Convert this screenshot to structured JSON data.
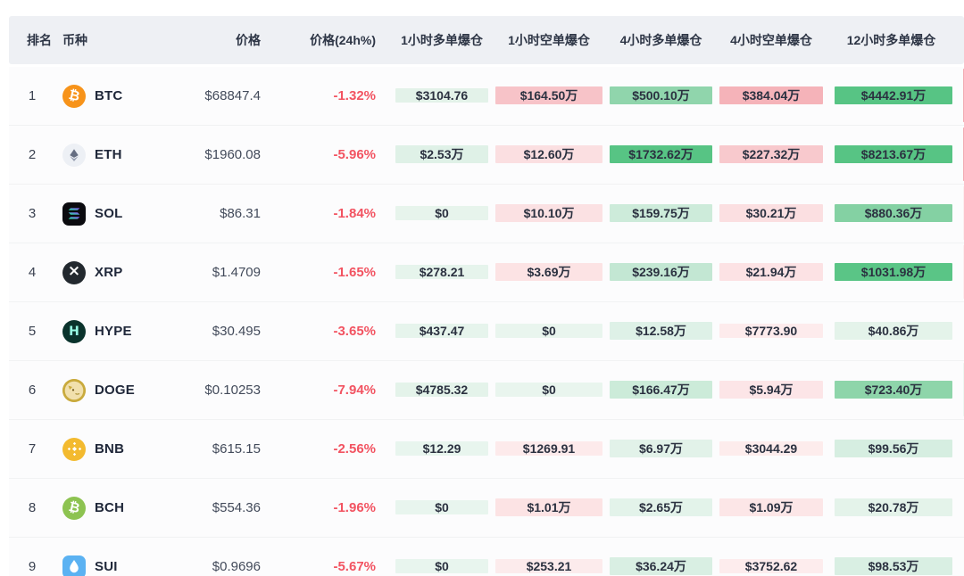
{
  "table": {
    "header": {
      "columns": [
        {
          "label": "排名"
        },
        {
          "label": "币种"
        },
        {
          "label": "价格"
        },
        {
          "label": "价格(24h%)"
        },
        {
          "label": "1小时多单爆仓"
        },
        {
          "label": "1小时空单爆仓"
        },
        {
          "label": "4小时多单爆仓"
        },
        {
          "label": "4小时空单爆仓"
        },
        {
          "label": "12小时多单爆仓"
        }
      ]
    },
    "rows": [
      {
        "rank": "1",
        "symbol": "BTC",
        "price": "$68847.4",
        "change": "-1.32%",
        "icon": {
          "glyph": "btc",
          "shape": "circle",
          "bg": "#f7931a"
        },
        "cells": [
          {
            "text": "$3104.76",
            "bg": "#e3f2e9"
          },
          {
            "text": "$164.50万",
            "bg": "#f7c3c8"
          },
          {
            "text": "$500.10万",
            "bg": "#90d5ac"
          },
          {
            "text": "$384.04万",
            "bg": "#f5b3b9"
          },
          {
            "text": "$4442.91万",
            "bg": "#57c484"
          }
        ],
        "edge_bg": "#f3abb2"
      },
      {
        "rank": "2",
        "symbol": "ETH",
        "price": "$1960.08",
        "change": "-5.96%",
        "icon": {
          "glyph": "eth",
          "shape": "circle",
          "bg": "#edf0f5"
        },
        "cells": [
          {
            "text": "$2.53万",
            "bg": "#dff1e7"
          },
          {
            "text": "$12.60万",
            "bg": "#fbdfe1"
          },
          {
            "text": "$1732.62万",
            "bg": "#57c484"
          },
          {
            "text": "$227.32万",
            "bg": "#f8c9cd"
          },
          {
            "text": "$8213.67万",
            "bg": "#57c484"
          }
        ],
        "edge_bg": "#f3abb2"
      },
      {
        "rank": "3",
        "symbol": "SOL",
        "price": "$86.31",
        "change": "-1.84%",
        "icon": {
          "glyph": "sol",
          "shape": "square",
          "bg": "#0b0b0f"
        },
        "cells": [
          {
            "text": "$0",
            "bg": "#e7f4ec"
          },
          {
            "text": "$10.10万",
            "bg": "#fbe1e3"
          },
          {
            "text": "$159.75万",
            "bg": "#cdebda"
          },
          {
            "text": "$30.21万",
            "bg": "#fbdfe1"
          },
          {
            "text": "$880.36万",
            "bg": "#84d1a3"
          }
        ],
        "edge_bg": "#fdeff0"
      },
      {
        "rank": "4",
        "symbol": "XRP",
        "price": "$1.4709",
        "change": "-1.65%",
        "icon": {
          "glyph": "xrp",
          "shape": "circle",
          "bg": "#23292f"
        },
        "cells": [
          {
            "text": "$278.21",
            "bg": "#e6f4ec"
          },
          {
            "text": "$3.69万",
            "bg": "#fce3e4"
          },
          {
            "text": "$239.16万",
            "bg": "#c3e7d3"
          },
          {
            "text": "$21.94万",
            "bg": "#fce2e4"
          },
          {
            "text": "$1031.98万",
            "bg": "#5ac586"
          }
        ],
        "edge_bg": "#fdeff0"
      },
      {
        "rank": "5",
        "symbol": "HYPE",
        "price": "$30.495",
        "change": "-3.65%",
        "icon": {
          "glyph": "hype",
          "shape": "circle",
          "bg": "#0a332c"
        },
        "cells": [
          {
            "text": "$437.47",
            "bg": "#e6f4ec"
          },
          {
            "text": "$0",
            "bg": "#e9f5ee"
          },
          {
            "text": "$12.58万",
            "bg": "#def1e7"
          },
          {
            "text": "$7773.90",
            "bg": "#fdebec"
          },
          {
            "text": "$40.86万",
            "bg": "#e4f3ea"
          }
        ],
        "edge_bg": "#fbfcfc"
      },
      {
        "rank": "6",
        "symbol": "DOGE",
        "price": "$0.10253",
        "change": "-7.94%",
        "icon": {
          "glyph": "doge",
          "shape": "circle",
          "bg": "#c9aa3c"
        },
        "cells": [
          {
            "text": "$4785.32",
            "bg": "#e4f3ea"
          },
          {
            "text": "$0",
            "bg": "#e9f5ee"
          },
          {
            "text": "$166.47万",
            "bg": "#ccebd9"
          },
          {
            "text": "$5.94万",
            "bg": "#fce5e7"
          },
          {
            "text": "$723.40万",
            "bg": "#8ed5aa"
          }
        ],
        "edge_bg": "#eef7f2"
      },
      {
        "rank": "7",
        "symbol": "BNB",
        "price": "$615.15",
        "change": "-2.56%",
        "icon": {
          "glyph": "bnb",
          "shape": "circle",
          "bg": "#f3ba2f"
        },
        "cells": [
          {
            "text": "$12.29",
            "bg": "#e8f5ee"
          },
          {
            "text": "$1269.91",
            "bg": "#fdeaeb"
          },
          {
            "text": "$6.97万",
            "bg": "#e2f2e9"
          },
          {
            "text": "$3044.29",
            "bg": "#fdecec"
          },
          {
            "text": "$99.56万",
            "bg": "#d6eee1"
          }
        ],
        "edge_bg": "#fbfcfc"
      },
      {
        "rank": "8",
        "symbol": "BCH",
        "price": "$554.36",
        "change": "-1.96%",
        "icon": {
          "glyph": "bch",
          "shape": "circle",
          "bg": "#8dc351"
        },
        "cells": [
          {
            "text": "$0",
            "bg": "#e8f5ee"
          },
          {
            "text": "$1.01万",
            "bg": "#fce3e4"
          },
          {
            "text": "$2.65万",
            "bg": "#e3f3ea"
          },
          {
            "text": "$1.09万",
            "bg": "#fce6e7"
          },
          {
            "text": "$20.78万",
            "bg": "#e4f3ea"
          }
        ],
        "edge_bg": "#fbfcfc"
      },
      {
        "rank": "9",
        "symbol": "SUI",
        "price": "$0.9696",
        "change": "-5.67%",
        "icon": {
          "glyph": "sui",
          "shape": "square",
          "bg": "#5bb2f2"
        },
        "cells": [
          {
            "text": "$0",
            "bg": "#e8f5ee"
          },
          {
            "text": "$253.21",
            "bg": "#fcebec"
          },
          {
            "text": "$36.24万",
            "bg": "#d9efe3"
          },
          {
            "text": "$3752.62",
            "bg": "#fdeced"
          },
          {
            "text": "$98.53万",
            "bg": "#d9efe3"
          }
        ],
        "edge_bg": "#fbfcfc"
      }
    ]
  },
  "colors": {
    "header_bg": "#eef0f4",
    "negative_text": "#f25361",
    "bright_green": "#57c484",
    "strong_pink": "#f5b3b9",
    "row_border": "#f1f2f3",
    "cell_text": "#2b3140"
  }
}
